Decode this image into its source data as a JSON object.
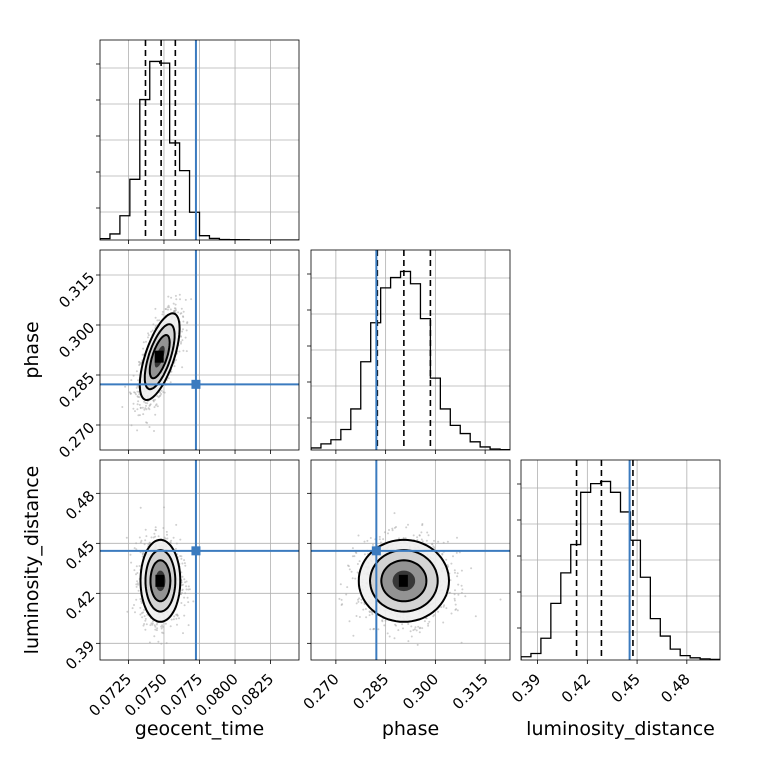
{
  "chart_data": {
    "type": "corner",
    "parameters": [
      {
        "key": "geocent_time",
        "label": "geocent_time",
        "range": [
          0.0705,
          0.0845
        ],
        "ticks": [
          "0.0725",
          "0.0750",
          "0.0775",
          "0.0800",
          "0.0825"
        ],
        "truth": 0.07725,
        "quantiles": [
          0.0737,
          0.0748,
          0.0758
        ],
        "hist": {
          "edges_start": 0.0705,
          "bin_width": 0.0007,
          "counts": [
            0.8,
            3.5,
            14,
            35,
            81,
            103,
            102,
            56,
            40,
            16,
            2.5,
            0.9,
            0.3,
            0.2,
            0.1,
            0,
            0,
            0,
            0,
            0
          ]
        }
      },
      {
        "key": "phase",
        "label": "phase",
        "range": [
          0.2625,
          0.3225
        ],
        "ticks": [
          "0.270",
          "0.285",
          "0.300",
          "0.315"
        ],
        "truth": 0.2822,
        "quantiles": [
          0.2825,
          0.2905,
          0.2985
        ],
        "hist": {
          "edges_start": 0.2625,
          "bin_width": 0.003,
          "counts": [
            1,
            3,
            5,
            10,
            20,
            43,
            62,
            79,
            84,
            87,
            81,
            64,
            35,
            20,
            12,
            8,
            4,
            1.5,
            0.5,
            0.2
          ]
        }
      },
      {
        "key": "luminosity_distance",
        "label": "luminosity_distance",
        "range": [
          0.38,
          0.5
        ],
        "ticks": [
          "0.39",
          "0.42",
          "0.45",
          "0.48"
        ],
        "truth": 0.4455,
        "quantiles": [
          0.4135,
          0.4285,
          0.4475
        ],
        "hist": {
          "edges_start": 0.38,
          "bin_width": 0.006,
          "counts": [
            1.5,
            3,
            10,
            26,
            40,
            53,
            77,
            81,
            82,
            77,
            68,
            55,
            38,
            19,
            11,
            5,
            2,
            1,
            0.5,
            0.3
          ]
        }
      }
    ],
    "joint": [
      {
        "x": "geocent_time",
        "y": "phase",
        "mean": [
          0.0747,
          0.2905
        ],
        "std": [
          0.0007,
          0.0065
        ],
        "corr": 0.65
      },
      {
        "x": "geocent_time",
        "y": "luminosity_distance",
        "mean": [
          0.07475,
          0.4275
        ],
        "std": [
          0.0007,
          0.0123
        ],
        "corr": 0.0
      },
      {
        "x": "phase",
        "y": "luminosity_distance",
        "mean": [
          0.2905,
          0.4275
        ],
        "std": [
          0.0068,
          0.0123
        ],
        "corr": 0.0
      }
    ],
    "grid": true,
    "truth_color": "#3b7bbf",
    "quantile_line_style": "dashed"
  }
}
